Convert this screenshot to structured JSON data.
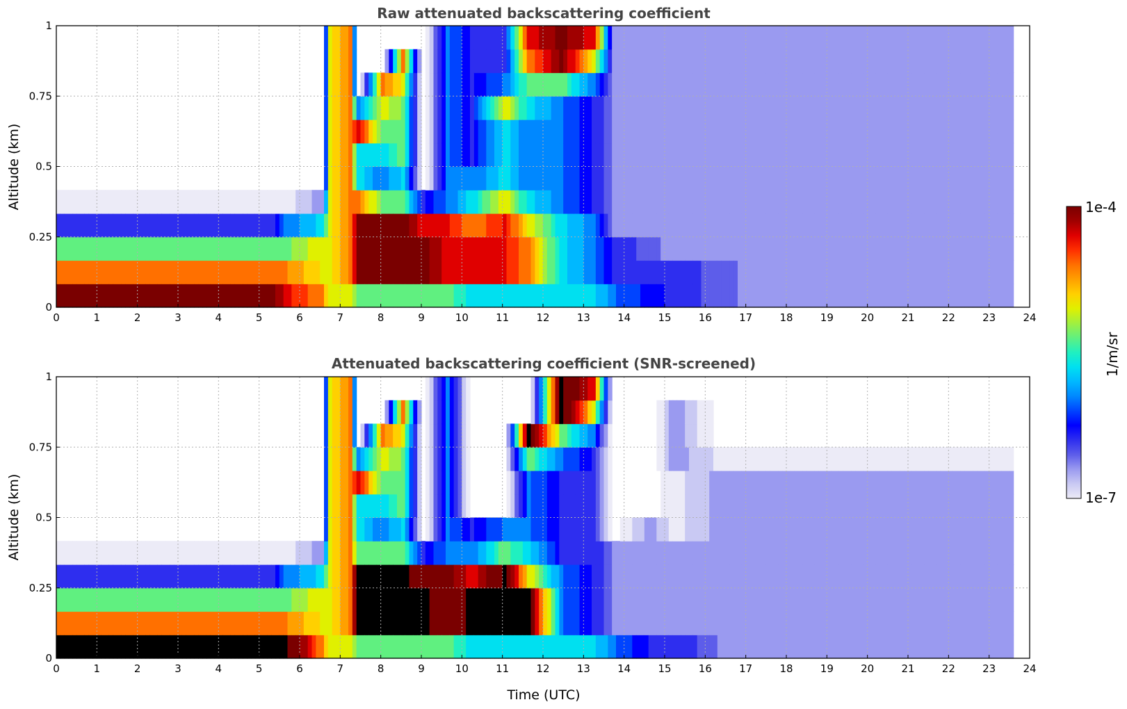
{
  "chart_data": [
    {
      "type": "heatmap",
      "title": "Raw attenuated backscattering coefficient",
      "xlabel": "",
      "ylabel": "Altitude (km)",
      "xlim": [
        0,
        24
      ],
      "ylim": [
        0,
        1
      ],
      "xticks": [
        "0",
        "1",
        "2",
        "3",
        "4",
        "5",
        "6",
        "7",
        "8",
        "9",
        "10",
        "11",
        "12",
        "13",
        "14",
        "15",
        "16",
        "17",
        "18",
        "19",
        "20",
        "21",
        "22",
        "23",
        "24"
      ],
      "yticks": [
        "0",
        "0.25",
        "0.5",
        "0.75",
        "1"
      ],
      "grid": true,
      "data_end_time": 23.6,
      "profile": [
        {
          "t": 0,
          "v": [
            10,
            8,
            6,
            3,
            1,
            0.3,
            0.3,
            0.3,
            0.3,
            0.3,
            0.3,
            0.3
          ]
        },
        {
          "t": 5.3,
          "v": [
            10,
            8,
            6,
            3,
            1,
            0.3,
            0.3,
            0.3,
            0.3,
            0.3,
            0.3,
            0.3
          ]
        },
        {
          "t": 5.6,
          "v": [
            9,
            8,
            6,
            4,
            1,
            0.3,
            0.3,
            0.3,
            0.3,
            0.3,
            0.3,
            0.3
          ]
        },
        {
          "t": 6.5,
          "v": [
            8,
            7,
            7,
            5,
            2,
            0.3,
            0.3,
            0.3,
            0.3,
            0.3,
            0.3,
            0.3
          ]
        },
        {
          "t": 6.7,
          "v": [
            7,
            7,
            7,
            7,
            7,
            7,
            7,
            7,
            7,
            7,
            7,
            7
          ]
        },
        {
          "t": 7.2,
          "v": [
            7,
            8,
            8,
            8,
            8,
            8,
            8,
            8,
            8,
            8,
            8,
            8
          ]
        },
        {
          "t": 7.4,
          "v": [
            6,
            10,
            10,
            10,
            8,
            5,
            5,
            9,
            4,
            0.3,
            0.3,
            0.3
          ]
        },
        {
          "t": 8.0,
          "v": [
            6,
            10,
            10,
            10,
            6,
            4,
            5,
            6,
            7,
            8,
            0.3,
            0.3
          ]
        },
        {
          "t": 8.5,
          "v": [
            6,
            10,
            10,
            10,
            6,
            5,
            6,
            6,
            6,
            7,
            8,
            0.3
          ]
        },
        {
          "t": 9.0,
          "v": [
            6,
            10,
            10,
            9,
            3,
            0.3,
            0.3,
            0.3,
            0.3,
            0.3,
            0.3,
            0.3
          ]
        },
        {
          "t": 9.6,
          "v": [
            6,
            9,
            9,
            9,
            4,
            4,
            4,
            4,
            4,
            4,
            4,
            4
          ]
        },
        {
          "t": 10.2,
          "v": [
            5,
            9,
            9,
            8,
            5,
            4,
            3,
            3,
            3,
            3,
            3,
            3
          ]
        },
        {
          "t": 11.0,
          "v": [
            5,
            9,
            9,
            9,
            7,
            5,
            5,
            5,
            7,
            4,
            3,
            3
          ]
        },
        {
          "t": 11.6,
          "v": [
            5,
            8,
            8,
            7,
            5,
            4,
            4,
            4,
            5,
            6,
            8,
            9
          ]
        },
        {
          "t": 12.4,
          "v": [
            5,
            5,
            5,
            5,
            4,
            4,
            4,
            4,
            4,
            6,
            10,
            10
          ]
        },
        {
          "t": 13.2,
          "v": [
            5,
            4,
            4,
            4,
            3,
            3,
            3,
            3,
            3,
            4,
            7,
            9
          ]
        },
        {
          "t": 13.7,
          "v": [
            4,
            3,
            3,
            2,
            2,
            2,
            2,
            2,
            2,
            2,
            2,
            2
          ]
        },
        {
          "t": 15.0,
          "v": [
            3,
            3,
            2,
            2,
            2,
            2,
            2,
            2,
            2,
            2,
            2,
            2
          ]
        },
        {
          "t": 17.0,
          "v": [
            2,
            2,
            2,
            2,
            2,
            2,
            2,
            2,
            2,
            2,
            2,
            2
          ]
        },
        {
          "t": 23.6,
          "v": [
            2,
            2,
            2,
            2,
            2,
            2,
            2,
            2,
            2,
            2,
            2,
            2
          ]
        }
      ]
    },
    {
      "type": "heatmap",
      "title": "Attenuated backscattering coefficient (SNR-screened)",
      "xlabel": "Time (UTC)",
      "ylabel": "Altitude (km)",
      "xlim": [
        0,
        24
      ],
      "ylim": [
        0,
        1
      ],
      "xticks": [
        "0",
        "1",
        "2",
        "3",
        "4",
        "5",
        "6",
        "7",
        "8",
        "9",
        "10",
        "11",
        "12",
        "13",
        "14",
        "15",
        "16",
        "17",
        "18",
        "19",
        "20",
        "21",
        "22",
        "23",
        "24"
      ],
      "yticks": [
        "0",
        "0.25",
        "0.5",
        "0.75",
        "1"
      ],
      "grid": true,
      "data_end_time": 23.6,
      "profile": [
        {
          "t": 0,
          "v": [
            11,
            8,
            6,
            3,
            1,
            0.5,
            0.3,
            0.3,
            0.3,
            0.3,
            0.3,
            0.3
          ]
        },
        {
          "t": 5.3,
          "v": [
            11,
            8,
            6,
            3,
            1,
            0.5,
            0.3,
            0.3,
            0.3,
            0.3,
            0.3,
            0.3
          ]
        },
        {
          "t": 5.6,
          "v": [
            11,
            8,
            6,
            4,
            1,
            0.3,
            0.3,
            0.3,
            0.3,
            0.3,
            0.3,
            0.3
          ]
        },
        {
          "t": 6.5,
          "v": [
            8,
            7,
            7,
            5,
            2,
            0.3,
            0.3,
            0.3,
            0.3,
            0.3,
            0.3,
            0.3
          ]
        },
        {
          "t": 6.7,
          "v": [
            7,
            7,
            7,
            7,
            7,
            7,
            7,
            7,
            7,
            7,
            7,
            7
          ]
        },
        {
          "t": 7.2,
          "v": [
            7,
            8,
            8,
            8,
            8,
            8,
            8,
            8,
            8,
            8,
            8,
            8
          ]
        },
        {
          "t": 7.4,
          "v": [
            6,
            11,
            11,
            11,
            6,
            5,
            5,
            9,
            4,
            0.3,
            0.3,
            0.3
          ]
        },
        {
          "t": 8.0,
          "v": [
            6,
            11,
            11,
            11,
            6,
            4,
            5,
            6,
            7,
            8,
            0.3,
            0.3
          ]
        },
        {
          "t": 8.5,
          "v": [
            6,
            11,
            11,
            11,
            6,
            5,
            6,
            6,
            6,
            7,
            8,
            0.3
          ]
        },
        {
          "t": 9.0,
          "v": [
            6,
            11,
            11,
            10,
            3,
            0.3,
            0.3,
            0.3,
            0.3,
            0.3,
            0.3,
            0.3
          ]
        },
        {
          "t": 9.6,
          "v": [
            6,
            10,
            10,
            10,
            4,
            4,
            4,
            4,
            4,
            4,
            4,
            4
          ]
        },
        {
          "t": 10.2,
          "v": [
            5,
            11,
            11,
            9,
            4,
            3,
            0.3,
            0.3,
            0.3,
            0.3,
            0.3,
            0.3
          ]
        },
        {
          "t": 11.0,
          "v": [
            5,
            11,
            11,
            11,
            6,
            4,
            0.3,
            0.3,
            0.3,
            0.3,
            0.3,
            0.3
          ]
        },
        {
          "t": 11.6,
          "v": [
            5,
            11,
            11,
            7,
            5,
            4,
            4,
            4,
            6,
            11,
            0.3,
            0.3
          ]
        },
        {
          "t": 12.4,
          "v": [
            5,
            4,
            4,
            4,
            3,
            3,
            3,
            3,
            4,
            6,
            11,
            11
          ]
        },
        {
          "t": 13.2,
          "v": [
            5,
            3,
            3,
            3,
            3,
            3,
            3,
            3,
            3,
            4,
            7,
            9
          ]
        },
        {
          "t": 13.7,
          "v": [
            4,
            2,
            2,
            2,
            2,
            0.3,
            0.3,
            0.3,
            0.3,
            0.3,
            0.3,
            0.3
          ]
        },
        {
          "t": 14.6,
          "v": [
            3,
            2,
            2,
            2,
            2,
            2,
            0.3,
            0.3,
            0.3,
            0.3,
            0.3,
            0.3
          ]
        },
        {
          "t": 15.2,
          "v": [
            3,
            2,
            2,
            2,
            2,
            1,
            1,
            1,
            2,
            2,
            2,
            0.3
          ]
        },
        {
          "t": 16.4,
          "v": [
            2,
            2,
            2,
            2,
            2,
            2,
            2,
            2,
            1,
            0.3,
            0.3,
            0.3
          ]
        },
        {
          "t": 23.6,
          "v": [
            2,
            2,
            2,
            2,
            2,
            2,
            2,
            2,
            1,
            0.3,
            0.3,
            0.3
          ]
        }
      ]
    }
  ],
  "colorbar": {
    "label": "1/m/sr",
    "max_label": "1e-4",
    "min_label": "1e-7",
    "colors": [
      "#ecebf7",
      "#c9c9f3",
      "#9a9af0",
      "#5d5dea",
      "#2e2eef",
      "#0000ff",
      "#0044ff",
      "#0088ff",
      "#00b8ff",
      "#00e0f0",
      "#20f0c0",
      "#60f080",
      "#a0f040",
      "#e0f000",
      "#ffd000",
      "#ffa000",
      "#ff7000",
      "#ff3000",
      "#e00000",
      "#a00000",
      "#7a0000"
    ]
  }
}
